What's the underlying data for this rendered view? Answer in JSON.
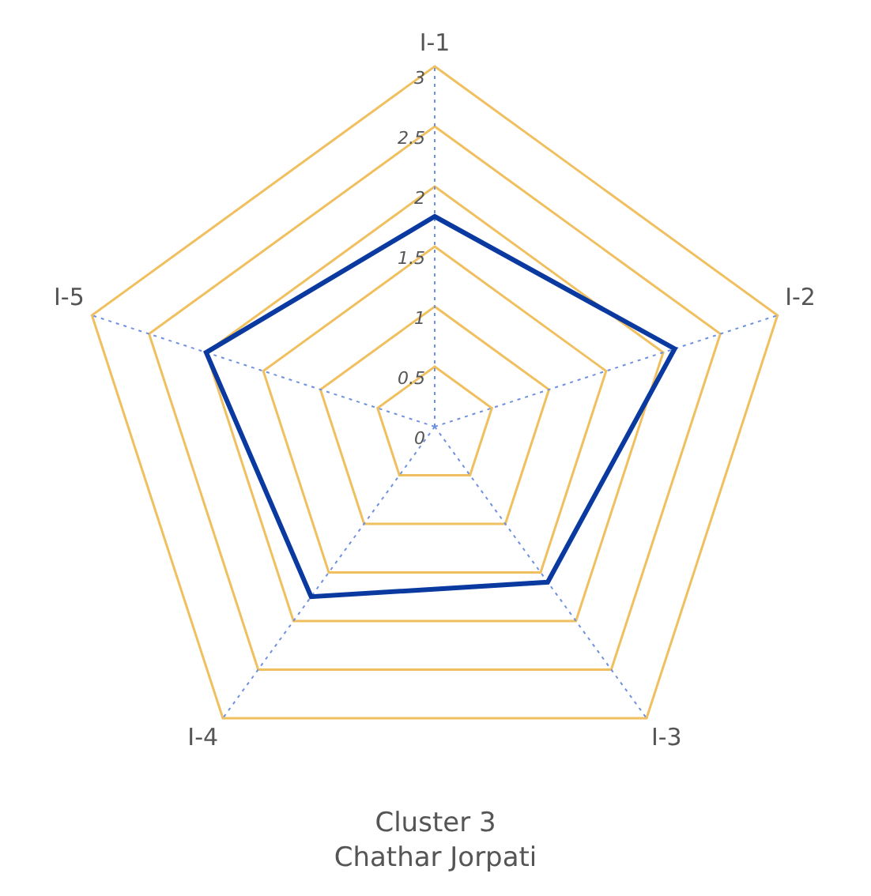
{
  "chart_data": {
    "type": "radar",
    "title": "Cluster 3",
    "subtitle": "Chathar Jorpati",
    "categories": [
      "I-1",
      "I-2",
      "I-3",
      "I-4",
      "I-5"
    ],
    "series": [
      {
        "color": "#0a3aa0",
        "values": [
          1.75,
          2.1,
          1.6,
          1.75,
          2.0
        ]
      }
    ],
    "ylim": [
      0,
      3
    ],
    "yticks": [
      0,
      0.5,
      1,
      1.5,
      2,
      2.5,
      3
    ],
    "grid": true,
    "legend": false,
    "marker": "none",
    "line_style": "solid"
  }
}
